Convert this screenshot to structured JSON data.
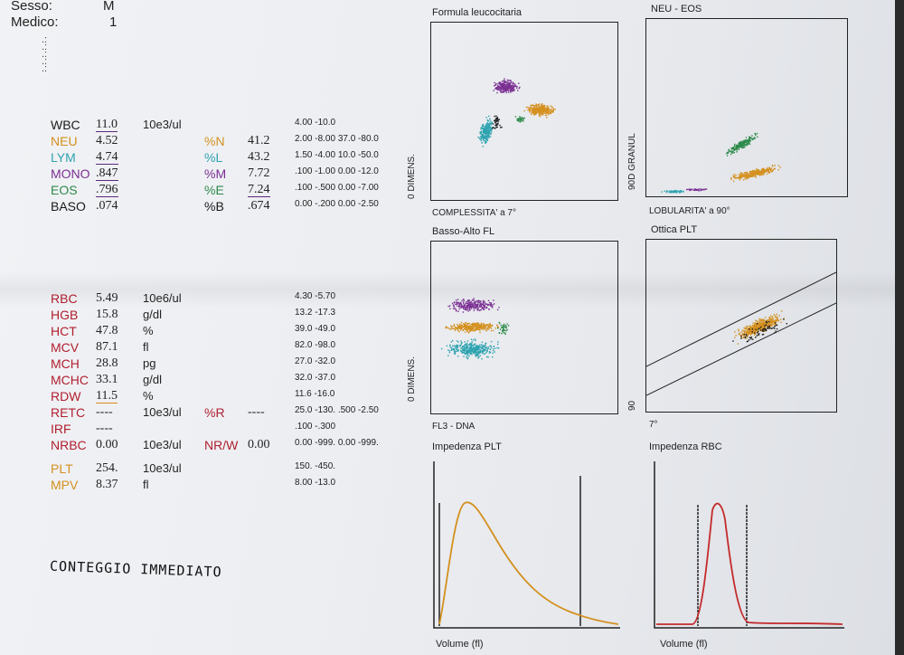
{
  "header": {
    "sex_label": "Sesso:",
    "sex_value": "M",
    "doctor_label": "Medico:",
    "doctor_value": "1",
    "dots": [
      ".:",
      ".:",
      ".:",
      ".:",
      ".:"
    ]
  },
  "colors": {
    "neutrophil": "#d4901e",
    "lymphocyte": "#2fa3b0",
    "monocyte": "#7a2e92",
    "eosinophil": "#2e8a4a",
    "black": "#1a1a1a",
    "red_param": "#b01e2e",
    "hist_plt": "#d4901e",
    "hist_rbc": "#c42a2a"
  },
  "results": [
    {
      "param": "WBC",
      "color": "#1a1a1a",
      "value": "11.0",
      "underline": "purple",
      "unit": "10e3/ul",
      "pct": "",
      "pct_color": "",
      "pct_val": "",
      "pct_underline": "",
      "range": "4.00 -10.0"
    },
    {
      "param": "NEU",
      "color": "#d4901e",
      "value": "4.52",
      "underline": "",
      "unit": "",
      "pct": "%N",
      "pct_color": "#d4901e",
      "pct_val": "41.2",
      "pct_underline": "",
      "range": "2.00 -8.00  37.0 -80.0"
    },
    {
      "param": "LYM",
      "color": "#2fa3b0",
      "value": "4.74",
      "underline": "purple",
      "unit": "",
      "pct": "%L",
      "pct_color": "#2fa3b0",
      "pct_val": "43.2",
      "pct_underline": "",
      "range": "1.50 -4.00  10.0 -50.0"
    },
    {
      "param": "MONO",
      "color": "#7a2e92",
      "value": ".847",
      "underline": "purple",
      "unit": "",
      "pct": "%M",
      "pct_color": "#7a2e92",
      "pct_val": "7.72",
      "pct_underline": "",
      "range": ".100 -1.00  0.00 -12.0"
    },
    {
      "param": "EOS",
      "color": "#2e8a4a",
      "value": ".796",
      "underline": "purple",
      "unit": "",
      "pct": "%E",
      "pct_color": "#2e8a4a",
      "pct_val": "7.24",
      "pct_underline": "purple",
      "range": ".100 -.500  0.00 -7.00"
    },
    {
      "param": "BASO",
      "color": "#1a1a1a",
      "value": ".074",
      "underline": "",
      "unit": "",
      "pct": "%B",
      "pct_color": "#1a1a1a",
      "pct_val": ".674",
      "pct_underline": "",
      "range": "0.00 -.200  0.00 -2.50"
    },
    {
      "param": "RBC",
      "color": "#b01e2e",
      "value": "5.49",
      "underline": "",
      "unit": "10e6/ul",
      "pct": "",
      "pct_color": "",
      "pct_val": "",
      "pct_underline": "",
      "range": "4.30 -5.70"
    },
    {
      "param": "HGB",
      "color": "#b01e2e",
      "value": "15.8",
      "underline": "",
      "unit": "g/dl",
      "pct": "",
      "pct_color": "",
      "pct_val": "",
      "pct_underline": "",
      "range": "13.2 -17.3"
    },
    {
      "param": "HCT",
      "color": "#b01e2e",
      "value": "47.8",
      "underline": "",
      "unit": "%",
      "pct": "",
      "pct_color": "",
      "pct_val": "",
      "pct_underline": "",
      "range": "39.0 -49.0"
    },
    {
      "param": "MCV",
      "color": "#b01e2e",
      "value": "87.1",
      "underline": "",
      "unit": "fl",
      "pct": "",
      "pct_color": "",
      "pct_val": "",
      "pct_underline": "",
      "range": "82.0 -98.0"
    },
    {
      "param": "MCH",
      "color": "#b01e2e",
      "value": "28.8",
      "underline": "",
      "unit": "pg",
      "pct": "",
      "pct_color": "",
      "pct_val": "",
      "pct_underline": "",
      "range": "27.0 -32.0"
    },
    {
      "param": "MCHC",
      "color": "#b01e2e",
      "value": "33.1",
      "underline": "",
      "unit": "g/dl",
      "pct": "",
      "pct_color": "",
      "pct_val": "",
      "pct_underline": "",
      "range": "32.0 -37.0"
    },
    {
      "param": "RDW",
      "color": "#b01e2e",
      "value": "11.5",
      "underline": "orange",
      "unit": "%",
      "pct": "",
      "pct_color": "",
      "pct_val": "",
      "pct_underline": "",
      "range": "11.6 -16.0"
    },
    {
      "param": "RETC",
      "color": "#b01e2e",
      "value": "----",
      "underline": "",
      "unit": "10e3/ul",
      "pct": "%R",
      "pct_color": "#b01e2e",
      "pct_val": "----",
      "pct_underline": "",
      "range": "25.0 -130.  .500 -2.50"
    },
    {
      "param": "IRF",
      "color": "#b01e2e",
      "value": "----",
      "underline": "",
      "unit": "",
      "pct": "",
      "pct_color": "",
      "pct_val": "",
      "pct_underline": "",
      "range": ".100 -.300"
    },
    {
      "param": "NRBC",
      "color": "#b01e2e",
      "value": "0.00",
      "underline": "",
      "unit": "10e3/ul",
      "pct": "NR/W",
      "pct_color": "#b01e2e",
      "pct_val": "0.00",
      "pct_underline": "",
      "range": "0.00 -999.  0.00 -999."
    },
    {
      "param": "PLT",
      "color": "#d4901e",
      "value": "254.",
      "underline": "",
      "unit": "10e3/ul",
      "pct": "",
      "pct_color": "",
      "pct_val": "",
      "pct_underline": "",
      "range": "150. -450."
    },
    {
      "param": "MPV",
      "color": "#d4901e",
      "value": "8.37",
      "underline": "",
      "unit": "fl",
      "pct": "",
      "pct_color": "",
      "pct_val": "",
      "pct_underline": "",
      "range": "8.00 -13.0"
    }
  ],
  "note": {
    "text": "CONTEGGIO IMMEDIATO"
  },
  "plots": {
    "formula": {
      "title": "Formula leucocitaria",
      "xlabel": "COMPLESSITA' a 7°",
      "ylabel": "0 DIMENS."
    },
    "neueos": {
      "title": "NEU - EOS",
      "xlabel": "LOBULARITA' a 90°",
      "ylabel": "90D GRANUL"
    },
    "bassoalto": {
      "title": "Basso-Alto FL",
      "xlabel": "FL3 - DNA",
      "ylabel": "0 DIMENS."
    },
    "otticaplt": {
      "title": "Ottica PLT",
      "xlabel": "7°",
      "ylabel": "90"
    }
  },
  "histograms": {
    "plt": {
      "title": "Impedenza PLT",
      "xlabel": "Volume (fl)"
    },
    "rbc": {
      "title": "Impedenza RBC",
      "xlabel": "Volume (fl)"
    }
  }
}
